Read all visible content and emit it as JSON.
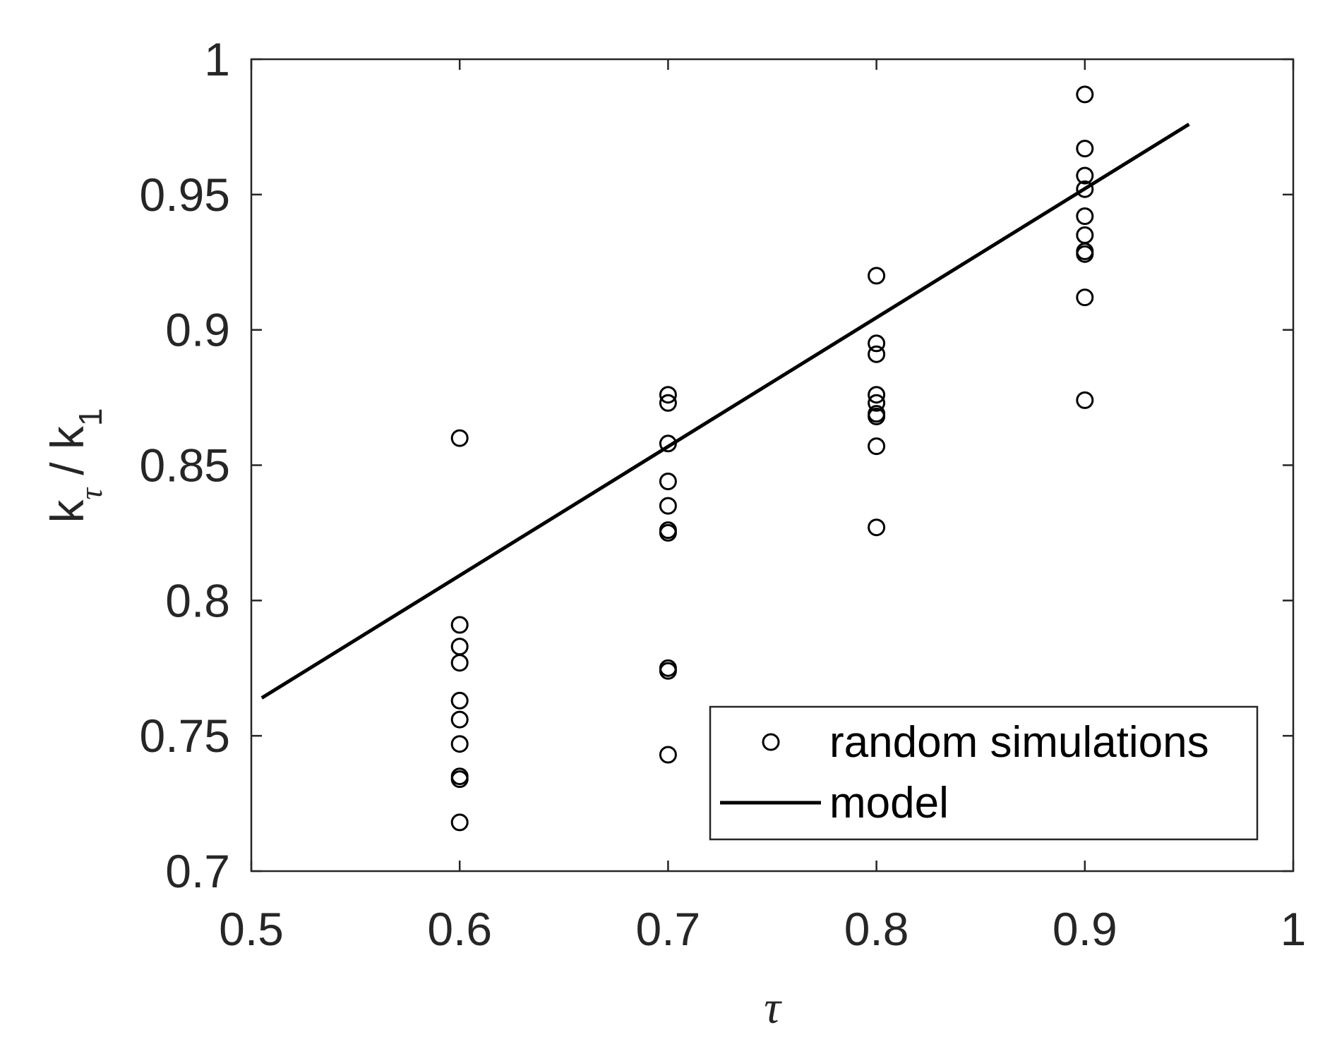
{
  "chart_data": {
    "type": "scatter",
    "xlabel": "τ",
    "ylabel": {
      "base": "k",
      "sub1": "τ",
      "separator": " / ",
      "base2": "k",
      "sub2": "1"
    },
    "xlim": [
      0.5,
      1
    ],
    "ylim": [
      0.7,
      1
    ],
    "xticks": [
      0.5,
      0.6,
      0.7,
      0.8,
      0.9,
      1
    ],
    "xtick_labels": [
      "0.5",
      "0.6",
      "0.7",
      "0.8",
      "0.9",
      "1"
    ],
    "yticks": [
      0.7,
      0.75,
      0.8,
      0.85,
      0.9,
      0.95,
      1
    ],
    "ytick_labels": [
      "0.7",
      "0.75",
      "0.8",
      "0.85",
      "0.9",
      "0.95",
      "1"
    ],
    "grid": false,
    "legend_position": "bottom-right",
    "series": [
      {
        "name": "random simulations",
        "kind": "scatter",
        "marker": "open-circle",
        "color": "#000000",
        "points": [
          [
            0.6,
            0.86
          ],
          [
            0.6,
            0.791
          ],
          [
            0.6,
            0.783
          ],
          [
            0.6,
            0.777
          ],
          [
            0.6,
            0.763
          ],
          [
            0.6,
            0.756
          ],
          [
            0.6,
            0.747
          ],
          [
            0.6,
            0.735
          ],
          [
            0.6,
            0.734
          ],
          [
            0.6,
            0.718
          ],
          [
            0.7,
            0.876
          ],
          [
            0.7,
            0.873
          ],
          [
            0.7,
            0.858
          ],
          [
            0.7,
            0.844
          ],
          [
            0.7,
            0.835
          ],
          [
            0.7,
            0.826
          ],
          [
            0.7,
            0.825
          ],
          [
            0.7,
            0.775
          ],
          [
            0.7,
            0.774
          ],
          [
            0.7,
            0.743
          ],
          [
            0.8,
            0.92
          ],
          [
            0.8,
            0.895
          ],
          [
            0.8,
            0.891
          ],
          [
            0.8,
            0.876
          ],
          [
            0.8,
            0.873
          ],
          [
            0.8,
            0.869
          ],
          [
            0.8,
            0.868
          ],
          [
            0.8,
            0.857
          ],
          [
            0.8,
            0.827
          ],
          [
            0.9,
            0.987
          ],
          [
            0.9,
            0.967
          ],
          [
            0.9,
            0.957
          ],
          [
            0.9,
            0.952
          ],
          [
            0.9,
            0.942
          ],
          [
            0.9,
            0.935
          ],
          [
            0.9,
            0.929
          ],
          [
            0.9,
            0.928
          ],
          [
            0.9,
            0.912
          ],
          [
            0.9,
            0.874
          ]
        ]
      },
      {
        "name": "model",
        "kind": "line",
        "color": "#000000",
        "points": [
          [
            0.505,
            0.764
          ],
          [
            0.95,
            0.976
          ]
        ]
      }
    ]
  }
}
